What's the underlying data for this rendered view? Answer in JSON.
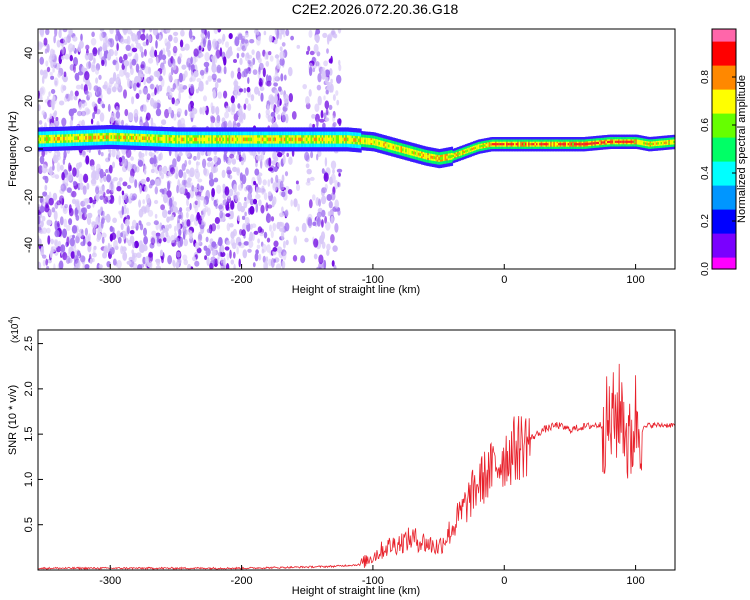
{
  "title": "C2E2.2026.072.20.36.G18",
  "colors": {
    "snr_line": "#e8202a",
    "colormap": [
      "#ff00ff",
      "#7a00ff",
      "#0000ff",
      "#0096ff",
      "#00ffff",
      "#00ff66",
      "#66ff00",
      "#ffff00",
      "#ff8800",
      "#ff0000",
      "#ff66aa"
    ]
  },
  "chart_data": [
    {
      "type": "heatmap",
      "title": "C2E2.2026.072.20.36.G18",
      "xlabel": "Height of straight line (km)",
      "ylabel": "Frequency (Hz)",
      "xlim": [
        -355,
        130
      ],
      "ylim": [
        -50,
        50
      ],
      "x_ticks": [
        -300,
        -200,
        -100,
        0,
        100
      ],
      "y_ticks": [
        -40,
        -20,
        0,
        20,
        40
      ],
      "colorbar": {
        "label": "Normalized spectral amplitude",
        "range": [
          0,
          1
        ],
        "ticks": [
          "0.0",
          "0.2",
          "0.4",
          "0.6",
          "0.8"
        ]
      },
      "ridge_frequency_hz": {
        "x": [
          -355,
          -300,
          -250,
          -200,
          -150,
          -120,
          -100,
          -80,
          -60,
          -50,
          -40,
          -30,
          -20,
          -10,
          0,
          20,
          40,
          60,
          80,
          100,
          110,
          130
        ],
        "y": [
          4,
          5,
          4,
          4,
          4,
          4,
          3,
          0,
          -3,
          -4,
          -3,
          -1,
          1,
          2,
          2,
          2,
          2,
          2,
          3,
          3,
          2,
          3
        ]
      }
    },
    {
      "type": "line",
      "xlabel": "Height of straight line (km)",
      "ylabel": "SNR (10 * v/v)",
      "y_scale_label": "(x10",
      "y_scale_exponent": "4",
      "xlim": [
        -355,
        130
      ],
      "ylim": [
        0,
        2.65
      ],
      "x_ticks": [
        -300,
        -200,
        -100,
        0,
        100
      ],
      "y_ticks": [
        0.5,
        1.0,
        1.5,
        2.0,
        2.5
      ],
      "series": [
        {
          "x": [
            -355,
            -300,
            -250,
            -200,
            -160,
            -130,
            -110,
            -100,
            -90,
            -80,
            -70,
            -60,
            -50,
            -40,
            -30,
            -20,
            -10,
            0,
            10,
            20,
            30,
            40,
            50,
            60,
            70,
            75,
            80,
            85,
            90,
            95,
            100,
            105,
            110,
            120,
            130
          ],
          "y": [
            0.02,
            0.02,
            0.02,
            0.02,
            0.03,
            0.04,
            0.06,
            0.15,
            0.25,
            0.3,
            0.35,
            0.3,
            0.25,
            0.45,
            0.7,
            0.95,
            1.1,
            1.25,
            1.35,
            1.45,
            1.55,
            1.6,
            1.55,
            1.58,
            1.6,
            1.6,
            1.6,
            1.7,
            1.8,
            1.3,
            1.7,
            1.55,
            1.6,
            1.6,
            1.6
          ]
        }
      ]
    }
  ]
}
